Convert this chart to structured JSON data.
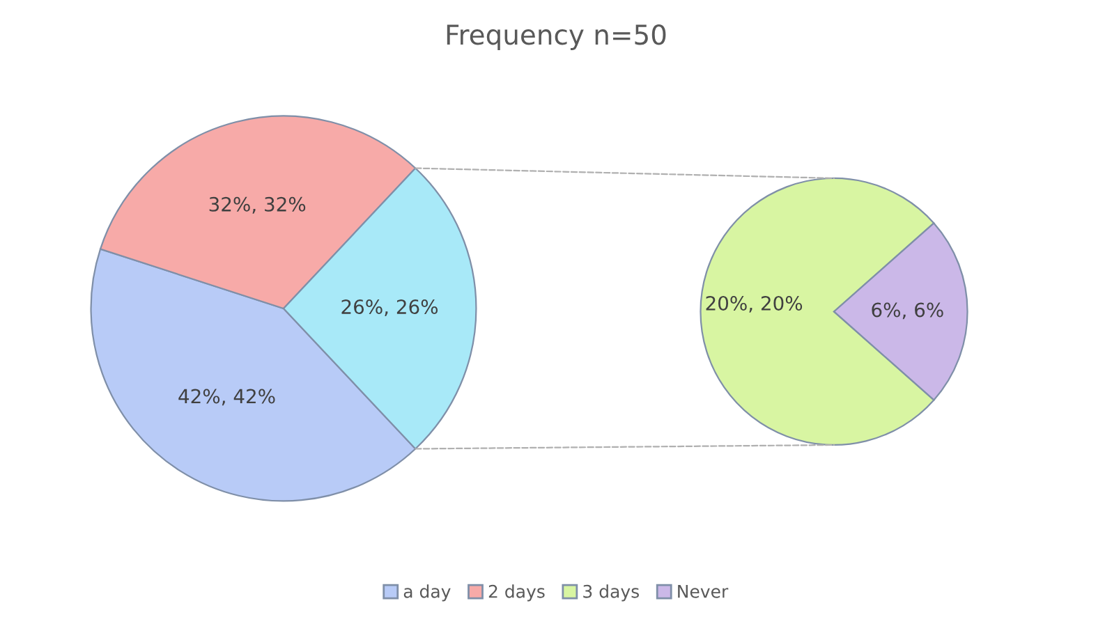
{
  "chart_data": [
    {
      "type": "pie",
      "title": "Frequency n=50",
      "categories": [
        "a day",
        "2 days",
        null
      ],
      "values": [
        42,
        32,
        26
      ],
      "colors": [
        "#b8cbf7",
        "#f7aaa8",
        "#a8e9f8"
      ],
      "value_labels": [
        "42%, 42%",
        "32%, 32%",
        "26%, 26%"
      ],
      "legend": "bottom"
    },
    {
      "type": "pie",
      "categories": [
        "3 days",
        "Never"
      ],
      "values": [
        20,
        6
      ],
      "colors": [
        "#d8f5a2",
        "#cbb8e8"
      ],
      "value_labels": [
        "20%, 20%",
        "6%, 6%"
      ],
      "legend": "bottom"
    }
  ]
}
